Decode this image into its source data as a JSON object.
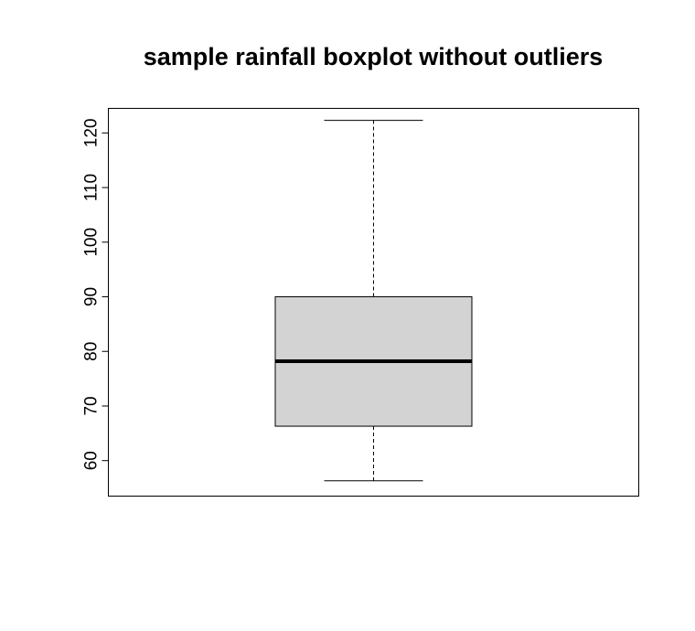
{
  "chart_data": {
    "type": "boxplot",
    "title": "sample rainfall boxplot without outliers",
    "xlabel": "",
    "ylabel": "",
    "ylim": [
      53.5,
      124.5
    ],
    "yticks": [
      60,
      70,
      80,
      90,
      100,
      110,
      120
    ],
    "ytick_labels": [
      "60",
      "70",
      "80",
      "90",
      "100",
      "110",
      "120"
    ],
    "grid": false,
    "boxes": [
      {
        "whisker_low": 56.3,
        "q1": 66.3,
        "median": 78.2,
        "q3": 90.0,
        "whisker_high": 122.3
      }
    ],
    "colors": {
      "box_fill": "#d3d3d3",
      "line": "#000000",
      "background": "#ffffff"
    }
  }
}
